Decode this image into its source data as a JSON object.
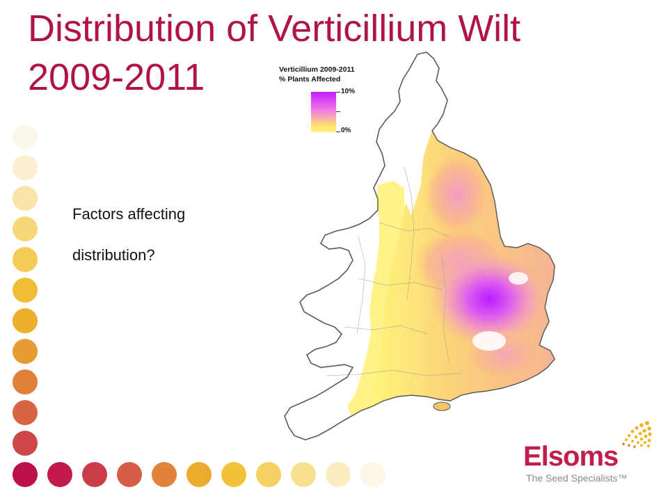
{
  "title": {
    "line1": "Distribution of Verticillium Wilt",
    "line2": "2009-2011"
  },
  "body": {
    "line1": "Factors affecting",
    "line2": "distribution?"
  },
  "legend": {
    "title_line1": "Verticillium 2009-2011",
    "title_line2": "% Plants Affected",
    "max_label": "10%",
    "min_label": "0%"
  },
  "logo": {
    "name": "Elsoms",
    "tagline": "The Seed Specialists™"
  },
  "colors": {
    "title": "#b0134a",
    "dot_palette": [
      "#fdf8ec",
      "#fcefcf",
      "#f9e3a6",
      "#f6d77a",
      "#f4cb55",
      "#f2bd36",
      "#edb02d",
      "#e89a33",
      "#e1803b",
      "#d76443",
      "#cd4747",
      "#c4264a",
      "#bb1048"
    ],
    "legend_high": "#c31cff",
    "legend_low": "#fff57c"
  }
}
